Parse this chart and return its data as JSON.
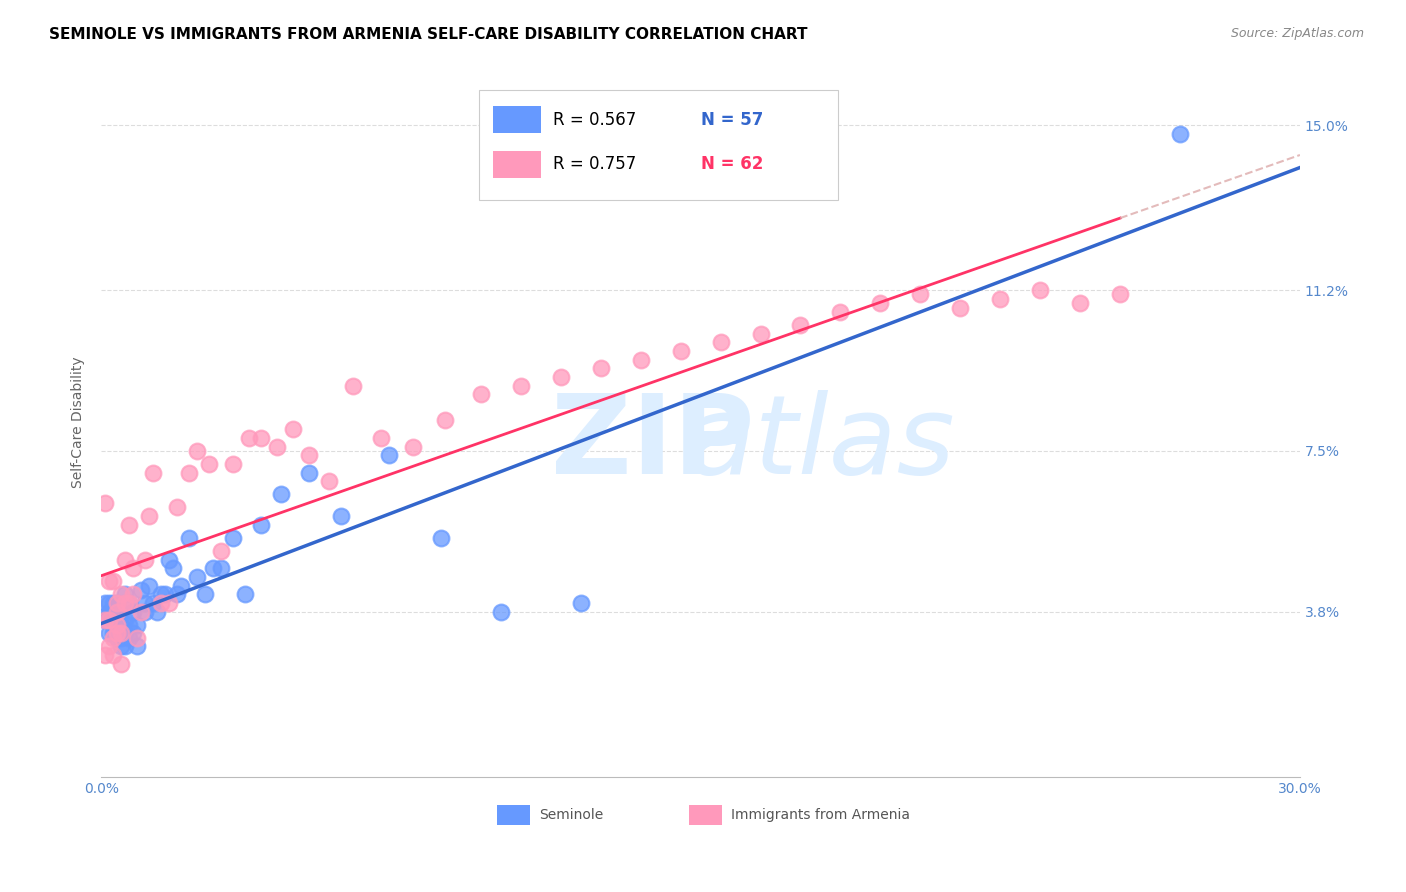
{
  "title": "SEMINOLE VS IMMIGRANTS FROM ARMENIA SELF-CARE DISABILITY CORRELATION CHART",
  "source": "Source: ZipAtlas.com",
  "ylabel": "Self-Care Disability",
  "legend_label1": "Seminole",
  "legend_label2": "Immigrants from Armenia",
  "legend_R1": "R = 0.567",
  "legend_N1": "N = 57",
  "legend_R2": "R = 0.757",
  "legend_N2": "N = 62",
  "ytick_labels": [
    "3.8%",
    "7.5%",
    "11.2%",
    "15.0%"
  ],
  "ytick_values": [
    0.038,
    0.075,
    0.112,
    0.15
  ],
  "xlim": [
    0.0,
    0.3
  ],
  "ylim": [
    0.0,
    0.163
  ],
  "color_seminole": "#6699FF",
  "color_armenia": "#FF99BB",
  "color_line_seminole": "#3366CC",
  "color_line_armenia": "#FF3366",
  "color_dashed": "#DDAAAA",
  "seminole_x": [
    0.001,
    0.001,
    0.002,
    0.002,
    0.002,
    0.003,
    0.003,
    0.003,
    0.003,
    0.004,
    0.004,
    0.004,
    0.004,
    0.004,
    0.005,
    0.005,
    0.005,
    0.005,
    0.006,
    0.006,
    0.006,
    0.006,
    0.007,
    0.007,
    0.007,
    0.008,
    0.008,
    0.009,
    0.009,
    0.01,
    0.011,
    0.011,
    0.012,
    0.013,
    0.014,
    0.015,
    0.016,
    0.017,
    0.018,
    0.019,
    0.02,
    0.022,
    0.024,
    0.026,
    0.028,
    0.03,
    0.033,
    0.036,
    0.04,
    0.045,
    0.052,
    0.06,
    0.072,
    0.085,
    0.1,
    0.12,
    0.27
  ],
  "seminole_y": [
    0.04,
    0.036,
    0.038,
    0.033,
    0.04,
    0.033,
    0.036,
    0.04,
    0.035,
    0.032,
    0.034,
    0.036,
    0.038,
    0.04,
    0.03,
    0.032,
    0.035,
    0.038,
    0.03,
    0.033,
    0.036,
    0.042,
    0.032,
    0.035,
    0.04,
    0.033,
    0.038,
    0.03,
    0.035,
    0.043,
    0.04,
    0.038,
    0.044,
    0.04,
    0.038,
    0.042,
    0.042,
    0.05,
    0.048,
    0.042,
    0.044,
    0.055,
    0.046,
    0.042,
    0.048,
    0.048,
    0.055,
    0.042,
    0.058,
    0.065,
    0.07,
    0.06,
    0.074,
    0.055,
    0.038,
    0.04,
    0.148
  ],
  "armenia_x": [
    0.001,
    0.001,
    0.001,
    0.002,
    0.002,
    0.002,
    0.003,
    0.003,
    0.003,
    0.004,
    0.004,
    0.004,
    0.004,
    0.005,
    0.005,
    0.005,
    0.006,
    0.006,
    0.007,
    0.007,
    0.008,
    0.008,
    0.009,
    0.01,
    0.011,
    0.012,
    0.013,
    0.015,
    0.017,
    0.019,
    0.022,
    0.024,
    0.027,
    0.03,
    0.033,
    0.037,
    0.04,
    0.044,
    0.048,
    0.052,
    0.057,
    0.063,
    0.07,
    0.078,
    0.086,
    0.095,
    0.105,
    0.115,
    0.125,
    0.135,
    0.145,
    0.155,
    0.165,
    0.175,
    0.185,
    0.195,
    0.205,
    0.215,
    0.225,
    0.235,
    0.245,
    0.255
  ],
  "armenia_y": [
    0.063,
    0.036,
    0.028,
    0.036,
    0.03,
    0.045,
    0.028,
    0.032,
    0.045,
    0.033,
    0.035,
    0.04,
    0.038,
    0.026,
    0.033,
    0.042,
    0.04,
    0.05,
    0.04,
    0.058,
    0.042,
    0.048,
    0.032,
    0.038,
    0.05,
    0.06,
    0.07,
    0.04,
    0.04,
    0.062,
    0.07,
    0.075,
    0.072,
    0.052,
    0.072,
    0.078,
    0.078,
    0.076,
    0.08,
    0.074,
    0.068,
    0.09,
    0.078,
    0.076,
    0.082,
    0.088,
    0.09,
    0.092,
    0.094,
    0.096,
    0.098,
    0.1,
    0.102,
    0.104,
    0.107,
    0.109,
    0.111,
    0.108,
    0.11,
    0.112,
    0.109,
    0.111
  ]
}
